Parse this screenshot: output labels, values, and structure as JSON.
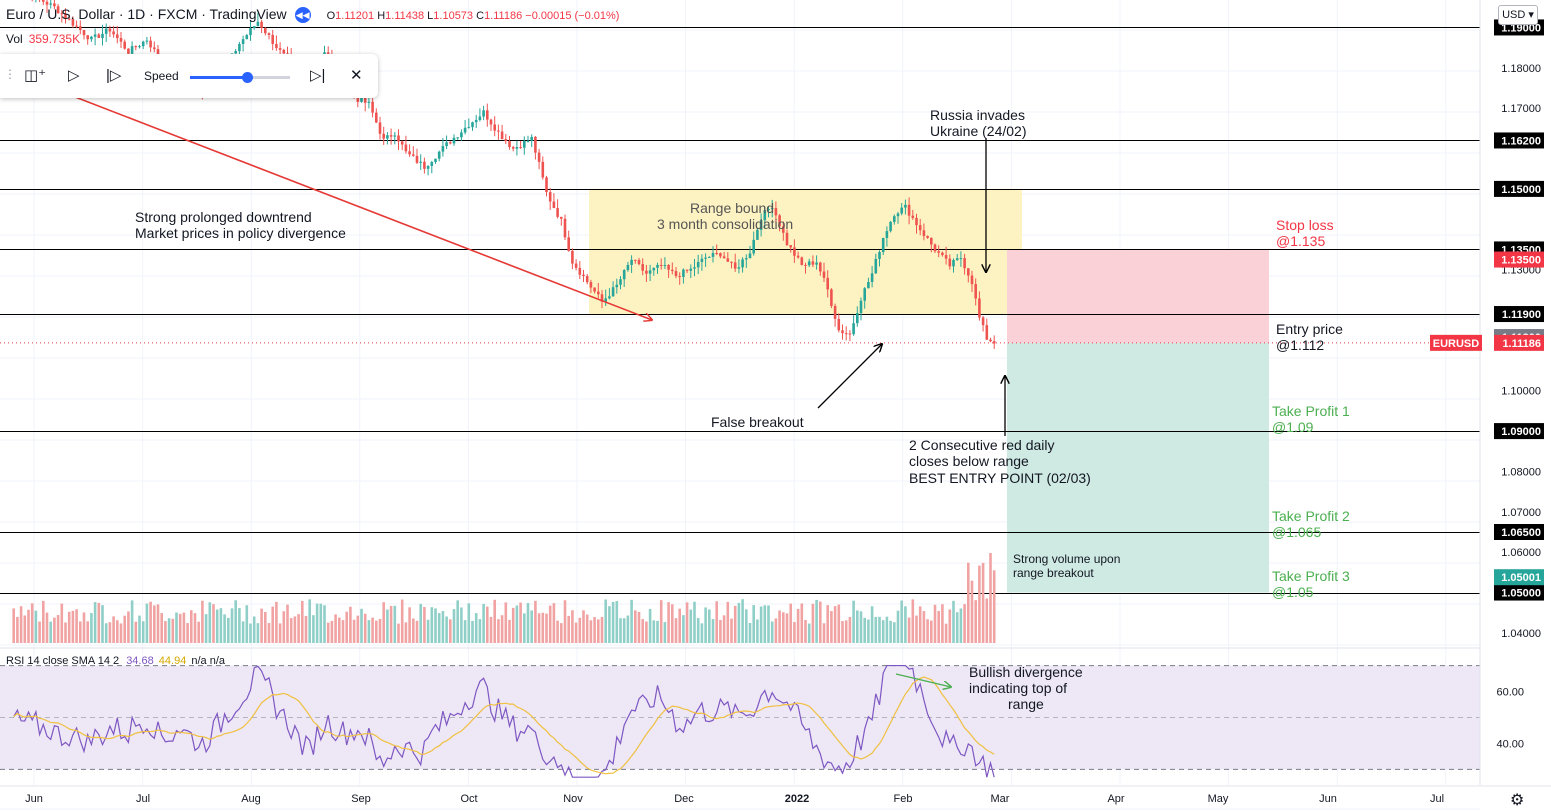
{
  "header": {
    "title": "Euro / U.S. Dollar · 1D · FXCM · TradingView",
    "ohlc": [
      {
        "k": "O",
        "v": "1.11201"
      },
      {
        "k": "H",
        "v": "1.11438"
      },
      {
        "k": "L",
        "v": "1.10573"
      },
      {
        "k": "C",
        "v": "1.11186"
      },
      {
        "k": "",
        "v": "−0.00015 (−0.01%)"
      }
    ],
    "vol_label": "Vol",
    "vol_value": "359.735K",
    "currency": "USD"
  },
  "replay_toolbar": {
    "speed_label": "Speed",
    "speed_level": 0.57
  },
  "colors": {
    "up": "#26a69a",
    "down": "#ef5350",
    "vol_up": "#8fcfc7",
    "vol_down": "#f1a3a3",
    "range_box": "#fdf3c2",
    "stop_zone": "#fad1d6",
    "target_zone": "#cfe9e3",
    "trend_arrow": "#e53935",
    "rsi_line": "#7e57c2",
    "rsi_ma": "#f0c040",
    "rsi_band": "#ede7f6",
    "loss_text": "#f23645",
    "profit_text": "#4caf50",
    "price_tag": "#f23645"
  },
  "chart_data": {
    "type": "candlestick",
    "symbol": "EURUSD",
    "timeframe": "1D",
    "price_range": [
      1.0375,
      1.1968
    ],
    "x_labels": [
      "Jun",
      "Jul",
      "Aug",
      "Sep",
      "Oct",
      "Nov",
      "Dec",
      "2022",
      "Feb",
      "Mar",
      "Apr",
      "May",
      "Jun",
      "Jul"
    ],
    "y_ticks": [
      "1.18000",
      "1.17000",
      "1.13000",
      "1.10000",
      "1.08000",
      "1.07000",
      "1.06000",
      "1.04000"
    ],
    "levels": [
      "1.19000",
      "1.16200",
      "1.15000",
      "1.13500",
      "1.11900",
      "1.09000",
      "1.06500",
      "1.05000"
    ],
    "extra_price_tags": [
      {
        "text": "1.13500",
        "color": "#f23645",
        "price": 1.1325
      },
      {
        "text": "1.11200",
        "color": "#787b86",
        "price": 1.1133
      },
      {
        "text": "1.05001",
        "color": "#26a69a",
        "price": 1.0538
      }
    ],
    "last_price": {
      "label": "EURUSD",
      "value": "1.11186",
      "price": 1.11186
    },
    "candle_path": [
      [
        0,
        1.201
      ],
      [
        12,
        1.195
      ],
      [
        22,
        1.187
      ],
      [
        27,
        1.1895
      ],
      [
        32,
        1.184
      ],
      [
        37,
        1.187
      ],
      [
        42,
        1.18
      ],
      [
        47,
        1.179
      ],
      [
        52,
        1.1745
      ],
      [
        56,
        1.1765
      ],
      [
        62,
        1.186
      ],
      [
        67,
        1.1915
      ],
      [
        73,
        1.184
      ],
      [
        80,
        1.177
      ],
      [
        85,
        1.184
      ],
      [
        92,
        1.173
      ],
      [
        97,
        1.171
      ],
      [
        101,
        1.162
      ],
      [
        104,
        1.164
      ],
      [
        107,
        1.159
      ],
      [
        112,
        1.1555
      ],
      [
        118,
        1.161
      ],
      [
        124,
        1.166
      ],
      [
        128,
        1.169
      ],
      [
        132,
        1.164
      ],
      [
        136,
        1.16
      ],
      [
        141,
        1.1625
      ],
      [
        143,
        1.156
      ],
      [
        145,
        1.149
      ],
      [
        149,
        1.142
      ],
      [
        152,
        1.132
      ],
      [
        156,
        1.127
      ],
      [
        160,
        1.122
      ],
      [
        164,
        1.126
      ],
      [
        168,
        1.1325
      ],
      [
        172,
        1.129
      ],
      [
        176,
        1.131
      ],
      [
        180,
        1.1285
      ],
      [
        184,
        1.13
      ],
      [
        188,
        1.133
      ],
      [
        192,
        1.134
      ],
      [
        196,
        1.13
      ],
      [
        200,
        1.1345
      ],
      [
        203,
        1.143
      ],
      [
        206,
        1.146
      ],
      [
        210,
        1.1365
      ],
      [
        214,
        1.131
      ],
      [
        218,
        1.132
      ],
      [
        221,
        1.125
      ],
      [
        224,
        1.115
      ],
      [
        227,
        1.114
      ],
      [
        230,
        1.123
      ],
      [
        233,
        1.129
      ],
      [
        236,
        1.138
      ],
      [
        239,
        1.144
      ],
      [
        242,
        1.1455
      ],
      [
        246,
        1.14
      ],
      [
        250,
        1.135
      ],
      [
        254,
        1.131
      ],
      [
        257,
        1.133
      ],
      [
        260,
        1.127
      ],
      [
        262,
        1.118
      ],
      [
        264,
        1.113
      ],
      [
        266,
        1.112
      ]
    ],
    "volume_scale_max": 100,
    "annotations": [
      "Strong prolonged downtrend",
      "Market prices in policy divergence",
      "Range bound",
      "3 month consolidation",
      "Russia invades",
      "Ukraine (24/02)",
      "Stop loss",
      "@1.135",
      "Entry price",
      "@1.112",
      "False breakout",
      "2 Consecutive red daily",
      "closes below range",
      "BEST ENTRY POINT (02/03)",
      "Take Profit 1",
      "@1.09",
      "Take Profit 2",
      "@1.065",
      "Take Profit 3",
      "@1.05",
      "Strong volume upon",
      "range breakout",
      "Bullish divergence",
      "indicating top of",
      "range"
    ],
    "rsi": {
      "label": "RSI 14 close SMA 14 2",
      "value": "34.68",
      "ma_value": "44.94",
      "na": "n/a n/a",
      "y_ticks": [
        "60.00",
        "40.00"
      ],
      "bands": [
        70,
        30
      ],
      "range": [
        24,
        76
      ]
    }
  }
}
